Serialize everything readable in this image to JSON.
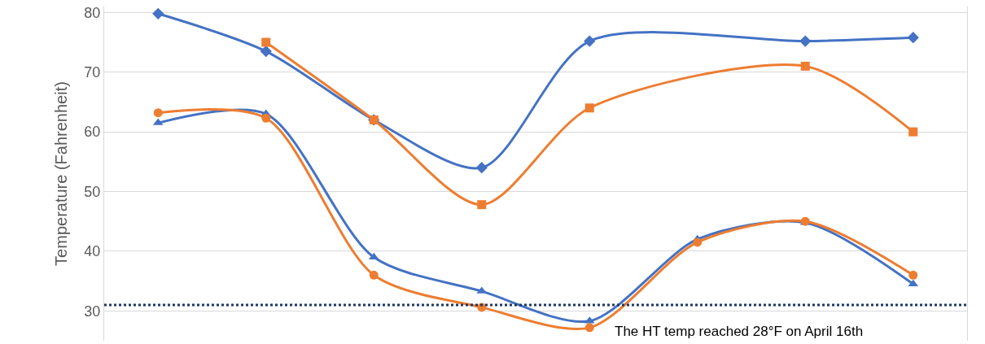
{
  "chart_data": {
    "type": "line",
    "ylabel": "Temperature (Fahrenheit)",
    "categories": [
      null,
      null,
      null,
      null,
      null,
      null,
      null,
      null
    ],
    "series": [
      {
        "color": "#4472c4",
        "marker": "diamond",
        "values": [
          79.8,
          73.5,
          62,
          54,
          75.2,
          null,
          75.2,
          75.8
        ]
      },
      {
        "color": "#ed7d31",
        "marker": "square",
        "values": [
          null,
          75,
          62,
          47.8,
          64,
          null,
          71,
          60
        ]
      },
      {
        "color": "#4472c4",
        "marker": "triangle",
        "values": [
          61.5,
          63,
          39,
          33.3,
          28.3,
          42,
          44.8,
          34.5
        ]
      },
      {
        "color": "#ed7d31",
        "marker": "circle",
        "values": [
          63.2,
          62.3,
          36,
          30.6,
          27.2,
          41.5,
          45,
          36
        ]
      }
    ],
    "ylim": [
      25,
      81
    ],
    "yticks": [
      30,
      40,
      50,
      60,
      70,
      80
    ],
    "grid": "y",
    "ref_lines": [
      {
        "axis": "y",
        "value": 31,
        "color": "#1f3864",
        "line_style": "dotted"
      }
    ],
    "annotations": [
      "The HT temp reached 28°F on April 16th"
    ]
  }
}
